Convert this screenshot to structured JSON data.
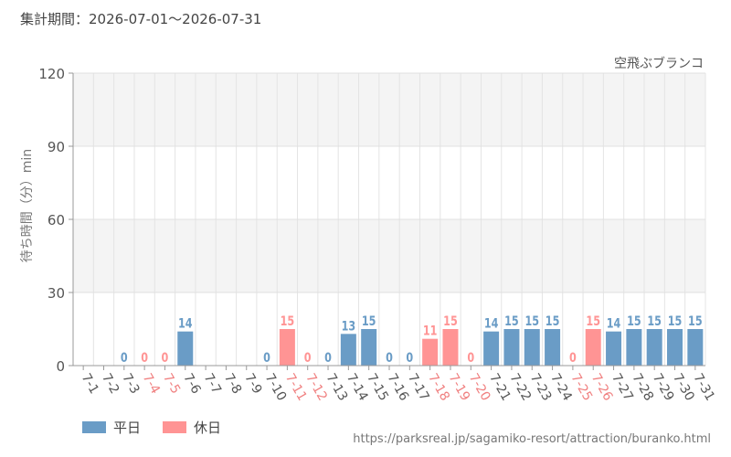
{
  "header": {
    "period": "集計期間：2026-07-01～2026-07-31"
  },
  "footer": {
    "source_url": "https://parksreal.jp/sagamiko-resort/attraction/buranko.html"
  },
  "legend": [
    {
      "label": "平日",
      "color": "#6a9cc6"
    },
    {
      "label": "休日",
      "color": "#ff9494"
    }
  ],
  "chart_data": {
    "type": "bar",
    "title": "空飛ぶブランコ",
    "ylabel": "待ち時間（分）min",
    "xlabel": "",
    "ylim": [
      0,
      120
    ],
    "yticks": [
      0,
      30,
      60,
      90,
      120
    ],
    "grid": true,
    "legend_position": "bottom-left",
    "colors": {
      "weekday": "#6a9cc6",
      "holiday": "#ff9494"
    },
    "categories": [
      "7-1",
      "7-2",
      "7-3",
      "7-4",
      "7-5",
      "7-6",
      "7-7",
      "7-8",
      "7-9",
      "7-10",
      "7-11",
      "7-12",
      "7-13",
      "7-14",
      "7-15",
      "7-16",
      "7-17",
      "7-18",
      "7-19",
      "7-20",
      "7-21",
      "7-22",
      "7-23",
      "7-24",
      "7-25",
      "7-26",
      "7-27",
      "7-28",
      "7-29",
      "7-30",
      "7-31"
    ],
    "day_type": [
      "weekday",
      "weekday",
      "weekday",
      "holiday",
      "holiday",
      "weekday",
      "weekday",
      "weekday",
      "weekday",
      "weekday",
      "holiday",
      "holiday",
      "weekday",
      "weekday",
      "weekday",
      "weekday",
      "weekday",
      "holiday",
      "holiday",
      "holiday",
      "weekday",
      "weekday",
      "weekday",
      "weekday",
      "holiday",
      "holiday",
      "weekday",
      "weekday",
      "weekday",
      "weekday",
      "weekday"
    ],
    "values": [
      null,
      null,
      0,
      0,
      0,
      14,
      null,
      null,
      null,
      0,
      15,
      0,
      0,
      13,
      15,
      0,
      0,
      11,
      15,
      0,
      14,
      15,
      15,
      15,
      0,
      15,
      14,
      15,
      15,
      15,
      15
    ]
  }
}
